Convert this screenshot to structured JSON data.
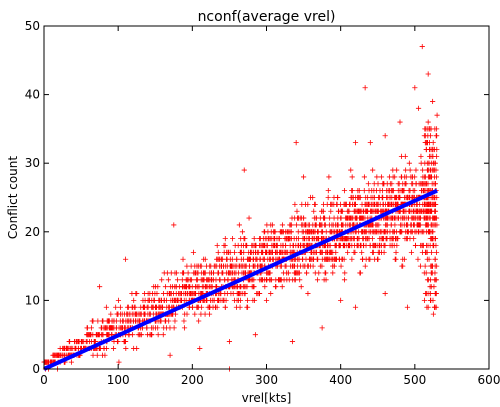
{
  "chart_data": {
    "type": "scatter",
    "title": "nconf(average vrel)",
    "xlabel": "vrel[kts]",
    "ylabel": "Conflict count",
    "xlim": [
      0,
      600
    ],
    "ylim": [
      0,
      50
    ],
    "x_ticks": [
      0,
      100,
      200,
      300,
      400,
      500,
      600
    ],
    "y_ticks": [
      0,
      10,
      20,
      30,
      40,
      50
    ],
    "x_tick_labels": [
      "0",
      "100",
      "200",
      "300",
      "400",
      "500",
      "600"
    ],
    "y_tick_labels": [
      "0",
      "10",
      "20",
      "30",
      "40",
      "50"
    ],
    "grid": false,
    "legend": false,
    "series": [
      {
        "kind": "scatter",
        "marker": "+",
        "color": "#ff0000",
        "x_range": [
          0,
          530
        ],
        "y_range": [
          0,
          47
        ],
        "band": {
          "center_slope": 0.049,
          "lower_edge": [
            [
              0,
              0
            ],
            [
              100,
              0
            ],
            [
              200,
              3
            ],
            [
              300,
              7
            ],
            [
              400,
              9
            ],
            [
              500,
              9
            ],
            [
              530,
              8
            ]
          ],
          "upper_edge": [
            [
              0,
              2
            ],
            [
              50,
              8
            ],
            [
              100,
              14
            ],
            [
              150,
              17
            ],
            [
              200,
              21
            ],
            [
              250,
              24
            ],
            [
              300,
              27
            ],
            [
              350,
              30
            ],
            [
              400,
              32
            ],
            [
              450,
              34
            ],
            [
              500,
              37
            ],
            [
              530,
              39
            ]
          ]
        },
        "points": [
          [
            510,
            47
          ],
          [
            518,
            43
          ],
          [
            433,
            41
          ],
          [
            500,
            41
          ],
          [
            524,
            39
          ],
          [
            340,
            33
          ],
          [
            420,
            33
          ],
          [
            460,
            34
          ],
          [
            270,
            29
          ],
          [
            175,
            21
          ],
          [
            110,
            16
          ],
          [
            75,
            12
          ],
          [
            250,
            0
          ],
          [
            525,
            8
          ],
          [
            490,
            9
          ],
          [
            420,
            9
          ],
          [
            375,
            6
          ],
          [
            335,
            4
          ],
          [
            285,
            5
          ],
          [
            250,
            4
          ],
          [
            210,
            3
          ],
          [
            170,
            2
          ],
          [
            300,
            10
          ],
          [
            400,
            10
          ],
          [
            460,
            11
          ],
          [
            350,
            28
          ],
          [
            440,
            33
          ],
          [
            480,
            36
          ],
          [
            505,
            38
          ],
          [
            530,
            37
          ]
        ]
      },
      {
        "kind": "line",
        "color": "#0000ff",
        "x": [
          0,
          530
        ],
        "y": [
          0,
          26
        ]
      }
    ],
    "colors": {
      "points": "#ff0000",
      "fit_line": "#0000ff",
      "axes": "#000000",
      "background": "#ffffff"
    }
  }
}
